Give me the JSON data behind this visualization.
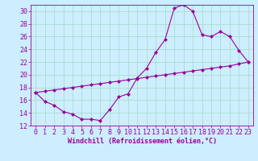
{
  "xlabel": "Windchill (Refroidissement éolien,°C)",
  "background_color": "#cceeff",
  "grid_color": "#aaddcc",
  "line_color": "#990099",
  "xlim": [
    -0.5,
    23.5
  ],
  "ylim": [
    12,
    31
  ],
  "yticks": [
    12,
    14,
    16,
    18,
    20,
    22,
    24,
    26,
    28,
    30
  ],
  "xticks": [
    0,
    1,
    2,
    3,
    4,
    5,
    6,
    7,
    8,
    9,
    10,
    11,
    12,
    13,
    14,
    15,
    16,
    17,
    18,
    19,
    20,
    21,
    22,
    23
  ],
  "line1_x": [
    0,
    1,
    2,
    3,
    4,
    5,
    6,
    7,
    8,
    9,
    10,
    11,
    12,
    13,
    14,
    15,
    16,
    17,
    18,
    19,
    20,
    21,
    22,
    23
  ],
  "line1_y": [
    17.2,
    15.8,
    15.2,
    14.2,
    13.8,
    13.0,
    13.0,
    12.8,
    14.5,
    16.5,
    17.0,
    19.5,
    21.0,
    23.5,
    25.5,
    30.5,
    31.0,
    30.0,
    26.3,
    26.0,
    26.8,
    26.0,
    23.8,
    22.0
  ],
  "line2_x": [
    0,
    1,
    2,
    3,
    4,
    5,
    6,
    7,
    8,
    9,
    10,
    11,
    12,
    13,
    14,
    15,
    16,
    17,
    18,
    19,
    20,
    21,
    22,
    23
  ],
  "line2_y": [
    17.2,
    17.4,
    17.6,
    17.8,
    18.0,
    18.2,
    18.4,
    18.6,
    18.8,
    19.0,
    19.2,
    19.4,
    19.6,
    19.8,
    20.0,
    20.2,
    20.4,
    20.6,
    20.8,
    21.0,
    21.2,
    21.4,
    21.7,
    22.0
  ],
  "marker_size": 2.5,
  "font_size": 6,
  "tick_font_size": 6
}
